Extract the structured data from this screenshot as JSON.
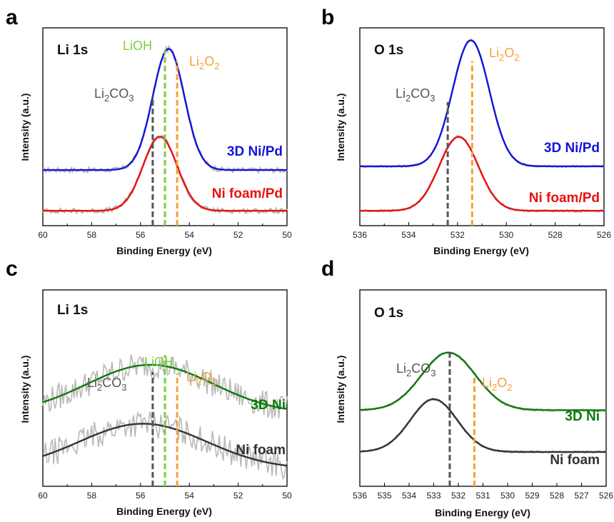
{
  "chart_data": [
    {
      "type": "line",
      "panel": "a",
      "core_label": "Li 1s",
      "xlabel": "Binding Energy (eV)",
      "ylabel": "Intensity (a.u.)",
      "xlim": [
        60,
        50
      ],
      "xticks": [
        "60",
        "58",
        "56",
        "54",
        "52",
        "50"
      ],
      "ylim": [
        0,
        1.6
      ],
      "references": [
        {
          "label": "Li2CO3",
          "text": "Li",
          "sub": "2",
          "text2": "CO",
          "sub2": "3",
          "x": 55.5,
          "height": 1.05,
          "color": "#555555"
        },
        {
          "label": "LiOH",
          "text": "LiOH",
          "x": 55.0,
          "height": 1.42,
          "color": "#7dcf3c"
        },
        {
          "label": "Li2O2",
          "text": "Li",
          "sub": "2",
          "text2": "O",
          "sub2": "2",
          "x": 54.5,
          "height": 1.33,
          "color": "#f4a236"
        }
      ],
      "series": [
        {
          "name": "3D Ni/Pd",
          "color": "#1414d9",
          "baseline": 0.45,
          "peaks": [
            {
              "center": 54.85,
              "amp": 0.98,
              "width": 0.65
            }
          ],
          "x": [
            60,
            59,
            58,
            57,
            56.5,
            56,
            55.5,
            55.2,
            55,
            54.85,
            54.6,
            54.3,
            54,
            53.5,
            53,
            52,
            51,
            50
          ],
          "values": [
            0.45,
            0.45,
            0.45,
            0.46,
            0.5,
            0.62,
            0.9,
            1.18,
            1.35,
            1.43,
            1.38,
            1.17,
            0.91,
            0.62,
            0.5,
            0.45,
            0.45,
            0.45
          ]
        },
        {
          "name": "Ni foam/Pd",
          "color": "#e8120f",
          "baseline": 0.12,
          "peaks": [
            {
              "center": 55.2,
              "amp": 0.6,
              "width": 0.7
            }
          ],
          "x": [
            60,
            59,
            58,
            57,
            56.5,
            56,
            55.5,
            55.2,
            55,
            54.5,
            54,
            53.5,
            53,
            52,
            51,
            50
          ],
          "values": [
            0.12,
            0.12,
            0.12,
            0.13,
            0.16,
            0.26,
            0.52,
            0.72,
            0.68,
            0.52,
            0.35,
            0.2,
            0.14,
            0.12,
            0.12,
            0.12
          ]
        }
      ]
    },
    {
      "type": "line",
      "panel": "b",
      "core_label": "O 1s",
      "xlabel": "Binding Energy (eV)",
      "ylabel": "Intensity (a.u.)",
      "xlim": [
        536,
        526
      ],
      "xticks": [
        "536",
        "534",
        "532",
        "530",
        "528",
        "526"
      ],
      "ylim": [
        0,
        1.6
      ],
      "references": [
        {
          "label": "Li2CO3",
          "text": "Li",
          "sub": "2",
          "text2": "CO",
          "sub2": "3",
          "x": 532.4,
          "height": 1.0,
          "color": "#555555"
        },
        {
          "label": "Li2O2",
          "text": "Li",
          "sub": "2",
          "text2": "O",
          "sub2": "2",
          "x": 531.4,
          "height": 1.33,
          "color": "#f4a236"
        }
      ],
      "series": [
        {
          "name": "3D Ni/Pd",
          "color": "#1414d9",
          "baseline": 0.48,
          "peaks": [
            {
              "center": 531.45,
              "amp": 1.02,
              "width": 0.75
            }
          ],
          "x": [
            536,
            535,
            534,
            533.5,
            533,
            532.5,
            532,
            531.7,
            531.45,
            531.2,
            530.8,
            530.3,
            529.8,
            529,
            528,
            526
          ],
          "values": [
            0.48,
            0.49,
            0.55,
            0.64,
            0.8,
            1.05,
            1.33,
            1.45,
            1.5,
            1.45,
            1.24,
            0.88,
            0.62,
            0.5,
            0.48,
            0.48
          ]
        },
        {
          "name": "Ni foam/Pd",
          "color": "#e8120f",
          "baseline": 0.12,
          "peaks": [
            {
              "center": 531.95,
              "amp": 0.6,
              "width": 0.8
            }
          ],
          "x": [
            536,
            535,
            534,
            533.5,
            533,
            532.5,
            532,
            531.5,
            531,
            530.5,
            530,
            529,
            528,
            526
          ],
          "values": [
            0.12,
            0.14,
            0.2,
            0.27,
            0.4,
            0.58,
            0.72,
            0.66,
            0.46,
            0.28,
            0.17,
            0.12,
            0.12,
            0.12
          ]
        }
      ]
    },
    {
      "type": "line",
      "panel": "c",
      "core_label": "Li 1s",
      "xlabel": "Binding Energy (eV)",
      "ylabel": "Intensity (a.u.)",
      "xlim": [
        60,
        50
      ],
      "xticks": [
        "60",
        "58",
        "56",
        "54",
        "52",
        "50"
      ],
      "ylim": [
        0,
        1.6
      ],
      "references": [
        {
          "label": "Li2CO3",
          "text": "Li",
          "sub": "2",
          "text2": "CO",
          "sub2": "3",
          "x": 55.5,
          "height": 0.93,
          "color": "#555555"
        },
        {
          "label": "LiOH",
          "text": "LiOH",
          "x": 55.0,
          "height": 1.07,
          "color": "#7dcf3c"
        },
        {
          "label": "Li2O2",
          "text": "Li",
          "sub": "2",
          "text2": "O",
          "sub2": "2",
          "x": 54.5,
          "height": 0.92,
          "color": "#f4a236"
        }
      ],
      "series": [
        {
          "name": "3D Ni",
          "color": "#0d7a0d",
          "baseline": 0.59,
          "peaks": [
            {
              "center": 55.6,
              "amp": 0.4,
              "width": 2.6
            }
          ],
          "x": [
            60,
            59,
            58,
            57,
            56,
            55.6,
            55,
            54,
            53,
            52,
            51,
            50
          ],
          "values": [
            0.62,
            0.7,
            0.8,
            0.9,
            0.97,
            0.98,
            0.96,
            0.89,
            0.8,
            0.71,
            0.66,
            0.62
          ]
        },
        {
          "name": "Ni foam",
          "color": "#333333",
          "baseline": 0.14,
          "peaks": [
            {
              "center": 55.9,
              "amp": 0.37,
              "width": 2.6
            }
          ],
          "x": [
            60,
            59,
            58,
            57,
            56,
            55.9,
            55,
            54,
            53,
            52,
            51,
            50
          ],
          "values": [
            0.17,
            0.25,
            0.35,
            0.46,
            0.51,
            0.51,
            0.49,
            0.42,
            0.33,
            0.25,
            0.2,
            0.17
          ]
        }
      ]
    },
    {
      "type": "line",
      "panel": "d",
      "core_label": "O 1s",
      "xlabel": "Binding Energy (eV)",
      "ylabel": "Intensity (a.u.)",
      "xlim": [
        536,
        526
      ],
      "xticks": [
        "536",
        "535",
        "534",
        "533",
        "532",
        "531",
        "530",
        "529",
        "528",
        "527",
        "526"
      ],
      "ylim": [
        0,
        1.6
      ],
      "references": [
        {
          "label": "Li2CO3",
          "text": "Li",
          "sub": "2",
          "text2": "CO",
          "sub2": "3",
          "x": 532.35,
          "height": 1.1,
          "color": "#555555"
        },
        {
          "label": "Li2O2",
          "text": "Li",
          "sub": "2",
          "text2": "O",
          "sub2": "2",
          "x": 531.35,
          "height": 0.9,
          "color": "#f4a236"
        }
      ],
      "series": [
        {
          "name": "3D Ni",
          "color": "#0d7a0d",
          "baseline": 0.62,
          "peaks": [
            {
              "center": 532.4,
              "amp": 0.47,
              "width": 1.1
            }
          ],
          "x": [
            536,
            535,
            534,
            533,
            532.4,
            532,
            531,
            530,
            529,
            528,
            526
          ],
          "values": [
            0.62,
            0.66,
            0.82,
            1.02,
            1.09,
            1.05,
            0.82,
            0.66,
            0.62,
            0.62,
            0.62
          ]
        },
        {
          "name": "Ni foam",
          "color": "#333333",
          "baseline": 0.28,
          "peaks": [
            {
              "center": 533.0,
              "amp": 0.43,
              "width": 0.95
            }
          ],
          "x": [
            536,
            535,
            534,
            533,
            532.5,
            532,
            531,
            530,
            529,
            528,
            526
          ],
          "values": [
            0.32,
            0.4,
            0.58,
            0.71,
            0.67,
            0.56,
            0.36,
            0.29,
            0.28,
            0.28,
            0.28
          ]
        }
      ]
    }
  ]
}
